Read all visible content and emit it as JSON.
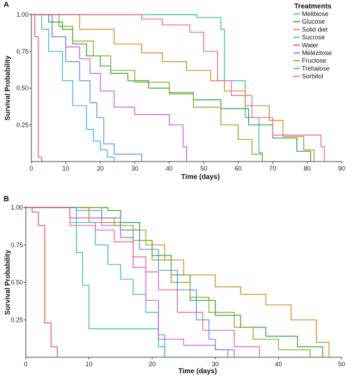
{
  "chart_data": [
    {
      "type": "line",
      "panel_label": "A",
      "xlabel": "Time (days)",
      "ylabel": "Survival Probability",
      "xlim": [
        0,
        90
      ],
      "ylim": [
        0,
        1.0
      ],
      "xticks": [
        0,
        10,
        20,
        30,
        40,
        50,
        60,
        70,
        80,
        90
      ],
      "yticks": [
        0.25,
        0.5,
        0.75,
        1.0
      ],
      "ytick_labels": [
        "0.25",
        "0.50",
        "0.75",
        "1.00"
      ],
      "step": true,
      "legend": {
        "title": "Treatments",
        "position": "top-right"
      },
      "series": [
        {
          "name": "Melibiose",
          "color": "#2fbfa0",
          "x": [
            0,
            48,
            55,
            56,
            62,
            66,
            67
          ],
          "y": [
            1.0,
            0.98,
            0.9,
            0.55,
            0.3,
            0.06,
            0.0
          ]
        },
        {
          "name": "Glucose",
          "color": "#22a03a",
          "x": [
            0,
            5,
            9,
            12,
            16,
            20,
            23,
            28,
            34,
            40,
            47,
            55,
            63,
            70,
            77,
            81
          ],
          "y": [
            1.0,
            0.95,
            0.9,
            0.8,
            0.72,
            0.65,
            0.6,
            0.55,
            0.5,
            0.47,
            0.42,
            0.36,
            0.25,
            0.16,
            0.07,
            0.0
          ]
        },
        {
          "name": "Solid diet",
          "color": "#c98a1e",
          "x": [
            0,
            14,
            24,
            32,
            38,
            45,
            52,
            56,
            62,
            69,
            73,
            79,
            82
          ],
          "y": [
            1.0,
            0.9,
            0.8,
            0.74,
            0.68,
            0.62,
            0.55,
            0.48,
            0.38,
            0.28,
            0.17,
            0.08,
            0.0
          ]
        },
        {
          "name": "Sucrose",
          "color": "#3bb0df",
          "x": [
            0,
            3,
            5,
            9,
            12,
            16,
            18,
            20,
            22,
            24
          ],
          "y": [
            1.0,
            0.9,
            0.75,
            0.55,
            0.38,
            0.22,
            0.14,
            0.08,
            0.03,
            0.0
          ]
        },
        {
          "name": "Water",
          "color": "#ef4d4d",
          "x": [
            0,
            1,
            2,
            3
          ],
          "y": [
            1.0,
            0.85,
            0.03,
            0.0
          ]
        },
        {
          "name": "Melezitose",
          "color": "#cc55dd",
          "x": [
            0,
            6,
            10,
            14,
            17,
            20,
            24,
            30,
            40,
            44,
            45
          ],
          "y": [
            1.0,
            0.85,
            0.78,
            0.7,
            0.6,
            0.48,
            0.37,
            0.32,
            0.25,
            0.1,
            0.0
          ]
        },
        {
          "name": "Fructose",
          "color": "#8ea31c",
          "x": [
            0,
            8,
            12,
            18,
            23,
            30,
            40,
            47,
            55,
            60,
            64,
            67
          ],
          "y": [
            1.0,
            0.92,
            0.82,
            0.72,
            0.62,
            0.54,
            0.46,
            0.37,
            0.25,
            0.15,
            0.05,
            0.0
          ]
        },
        {
          "name": "Trehalose",
          "color": "#5b8fe0",
          "x": [
            0,
            6,
            10,
            14,
            17,
            19,
            21,
            24,
            32
          ],
          "y": [
            1.0,
            0.85,
            0.68,
            0.55,
            0.4,
            0.3,
            0.12,
            0.05,
            0.0
          ]
        },
        {
          "name": "Sorbitol",
          "color": "#ee5e9c",
          "x": [
            0,
            1,
            32,
            38,
            46,
            50,
            54,
            58,
            64,
            70,
            84,
            85
          ],
          "y": [
            1.0,
            1.0,
            0.97,
            0.93,
            0.88,
            0.75,
            0.55,
            0.45,
            0.3,
            0.18,
            0.1,
            0.0
          ]
        }
      ]
    },
    {
      "type": "line",
      "panel_label": "B",
      "xlabel": "Time (days)",
      "ylabel": "Survival Probability",
      "xlim": [
        0,
        50
      ],
      "ylim": [
        0,
        1.0
      ],
      "xticks": [
        0,
        10,
        20,
        30,
        40,
        50
      ],
      "yticks": [
        0.25,
        0.5,
        0.75,
        1.0
      ],
      "ytick_labels": [
        "0.25",
        "0.50",
        "0.75",
        "1.00"
      ],
      "step": true,
      "series": [
        {
          "name": "Melibiose",
          "color": "#2fbfa0",
          "x": [
            0,
            7,
            8,
            9,
            10,
            18,
            21,
            22
          ],
          "y": [
            1.0,
            0.9,
            0.7,
            0.48,
            0.19,
            0.19,
            0.07,
            0.0
          ]
        },
        {
          "name": "Glucose",
          "color": "#22a03a",
          "x": [
            0,
            13,
            15,
            18,
            20,
            23,
            26,
            30,
            34,
            38,
            43,
            47
          ],
          "y": [
            1.0,
            0.98,
            0.9,
            0.78,
            0.68,
            0.55,
            0.38,
            0.28,
            0.2,
            0.14,
            0.07,
            0.0
          ]
        },
        {
          "name": "Solid diet",
          "color": "#c98a1e",
          "x": [
            0,
            10,
            15,
            19,
            22,
            25,
            30,
            34,
            38,
            42,
            46,
            48
          ],
          "y": [
            1.0,
            0.9,
            0.85,
            0.75,
            0.65,
            0.55,
            0.47,
            0.42,
            0.35,
            0.25,
            0.1,
            0.0
          ]
        },
        {
          "name": "Sucrose",
          "color": "#3bb0df",
          "x": [
            0,
            8,
            11,
            13,
            15,
            17,
            19,
            21,
            22
          ],
          "y": [
            1.0,
            0.9,
            0.75,
            0.62,
            0.52,
            0.42,
            0.3,
            0.15,
            0.0
          ]
        },
        {
          "name": "Water",
          "color": "#ef4d4d",
          "x": [
            0,
            1,
            2,
            3,
            4,
            5
          ],
          "y": [
            1.0,
            0.97,
            0.88,
            0.23,
            0.07,
            0.0
          ]
        },
        {
          "name": "Melezitose",
          "color": "#cc55dd",
          "x": [
            0,
            7,
            12,
            15,
            17,
            19,
            21,
            25,
            30,
            33
          ],
          "y": [
            1.0,
            0.93,
            0.88,
            0.8,
            0.6,
            0.38,
            0.12,
            0.08,
            0.05,
            0.0
          ]
        },
        {
          "name": "Fructose",
          "color": "#8ea31c",
          "x": [
            0,
            12,
            14,
            17,
            20,
            23,
            26,
            29,
            33,
            36,
            40,
            45
          ],
          "y": [
            1.0,
            0.93,
            0.88,
            0.78,
            0.65,
            0.5,
            0.4,
            0.3,
            0.2,
            0.12,
            0.05,
            0.0
          ]
        },
        {
          "name": "Trehalose",
          "color": "#5b8fe0",
          "x": [
            0,
            8,
            12,
            15,
            18,
            21,
            24,
            27,
            29,
            30,
            32
          ],
          "y": [
            1.0,
            0.98,
            0.93,
            0.85,
            0.72,
            0.58,
            0.45,
            0.25,
            0.12,
            0.05,
            0.0
          ]
        },
        {
          "name": "Sorbitol",
          "color": "#ee5e9c",
          "x": [
            0,
            7,
            11,
            14,
            17,
            19,
            21,
            24,
            28,
            33,
            37
          ],
          "y": [
            1.0,
            0.88,
            0.85,
            0.77,
            0.67,
            0.57,
            0.45,
            0.3,
            0.18,
            0.07,
            0.0
          ]
        }
      ]
    }
  ]
}
